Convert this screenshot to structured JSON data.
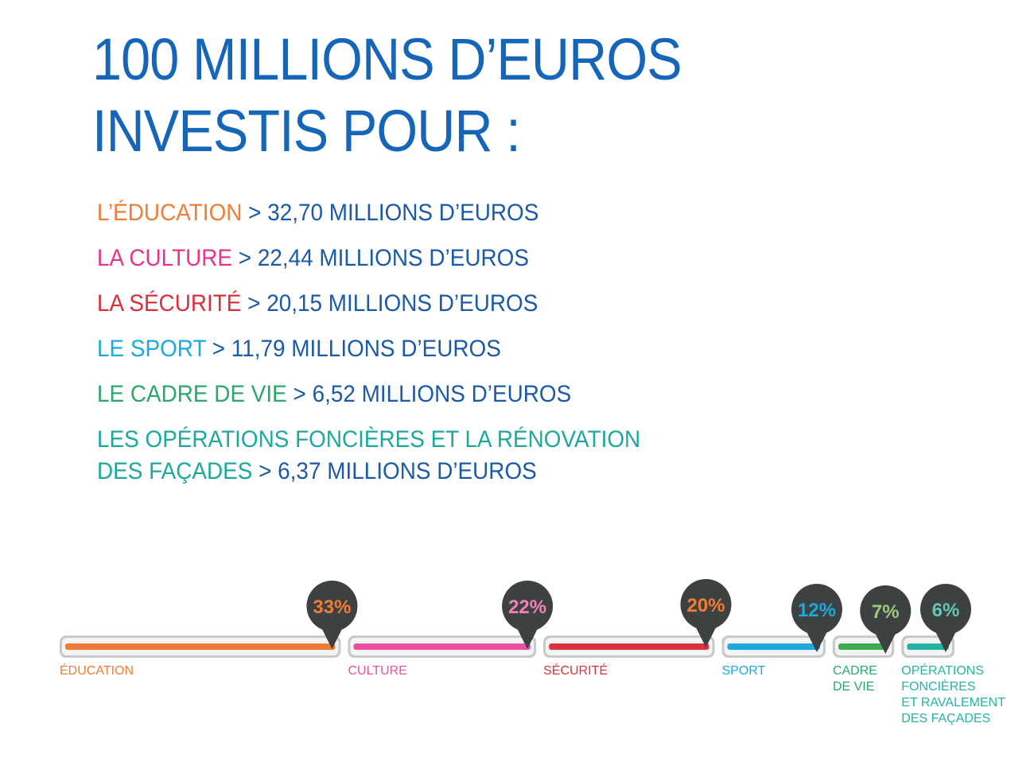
{
  "title": {
    "line1": "100 MILLIONS D’EUROS",
    "line2": "INVESTIS POUR :"
  },
  "breakdown": [
    {
      "category": "L’ÉDUCATION",
      "separator": " > ",
      "amount": "32,70 MILLIONS D’EUROS",
      "color": "#f07c35"
    },
    {
      "category": "LA CULTURE",
      "separator": " > ",
      "amount": "22,44 MILLIONS D’EUROS",
      "color": "#e8338a"
    },
    {
      "category": "LA SÉCURITÉ",
      "separator": " > ",
      "amount": "20,15 MILLIONS D’EUROS",
      "color": "#d7303a"
    },
    {
      "category": "LE SPORT",
      "separator": " > ",
      "amount": "11,79 MILLIONS D’EUROS",
      "color": "#1ea8e0"
    },
    {
      "category": "LE CADRE DE VIE",
      "separator": " > ",
      "amount": "6,52 MILLIONS D’EUROS",
      "color": "#2aa86a"
    },
    {
      "category": "LES OPÉRATIONS FONCIÈRES ET LA RÉNOVATION",
      "category_line2": "DES FAÇADES",
      "separator": " > ",
      "amount": "6,37 MILLIONS D’EUROS",
      "color": "#1aa99a"
    }
  ],
  "chart_data": {
    "type": "bar",
    "orientation": "horizontal-segmented",
    "categories": [
      "ÉDUCATION",
      "CULTURE",
      "SÉCURITÉ",
      "SPORT",
      "CADRE DE VIE",
      "OPÉRATIONS FONCIÈRES ET RAVALEMENT DES FAÇADES"
    ],
    "category_label_lines": [
      [
        "ÉDUCATION"
      ],
      [
        "CULTURE"
      ],
      [
        "SÉCURITÉ"
      ],
      [
        "SPORT"
      ],
      [
        "CADRE",
        "DE VIE"
      ],
      [
        "OPÉRATIONS",
        "FONCIÈRES",
        "ET RAVALEMENT",
        "DES FAÇADES"
      ]
    ],
    "values": [
      33,
      22,
      20,
      12,
      7,
      6
    ],
    "data_labels": [
      "33%",
      "22%",
      "20%",
      "12%",
      "7%",
      "6%"
    ],
    "colors": [
      "#f07c35",
      "#ea4fa0",
      "#d9343e",
      "#1ea8e0",
      "#3dac4e",
      "#26b3a4"
    ],
    "label_colors": [
      "#f07c35",
      "#ee82b8",
      "#f07c35",
      "#1ea8e0",
      "#9dc97a",
      "#5fc8b4"
    ],
    "marker_color": "#3e4142",
    "legend": false,
    "grid": false
  }
}
